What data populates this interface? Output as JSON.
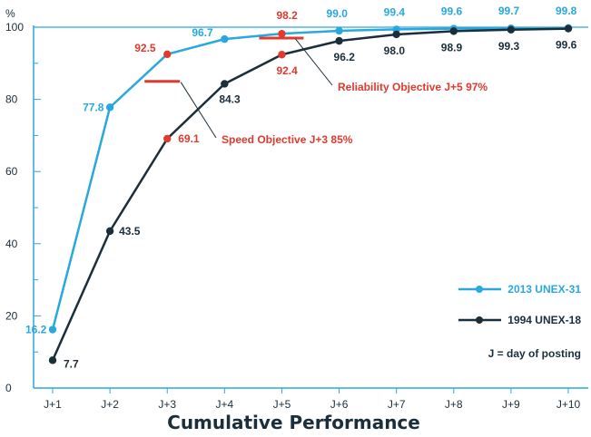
{
  "chart_data": {
    "type": "line",
    "title": "Cumulative Performance",
    "ylabel": "%",
    "categories": [
      "J+1",
      "J+2",
      "J+3",
      "J+4",
      "J+5",
      "J+6",
      "J+7",
      "J+8",
      "J+9",
      "J+10"
    ],
    "ylim": [
      0,
      100
    ],
    "yticks": [
      0,
      20,
      40,
      60,
      80,
      100
    ],
    "ytick_labels": [
      "0",
      "20",
      "40",
      "60",
      "80",
      "100"
    ],
    "grid": false,
    "legend_position": "bottom-right",
    "legend_note": "J = day of posting",
    "series": [
      {
        "name": "2013 UNEX-31",
        "color": "#29a8e0",
        "values": [
          16.2,
          77.8,
          92.5,
          96.7,
          98.2,
          99.0,
          99.4,
          99.6,
          99.7,
          99.8
        ],
        "labels": [
          "16.2",
          "77.8",
          "92.5",
          "96.7",
          "98.2",
          "99.0",
          "99.4",
          "99.6",
          "99.7",
          "99.8"
        ]
      },
      {
        "name": "1994 UNEX-18",
        "color": "#1a2e3b",
        "values": [
          7.7,
          43.5,
          69.1,
          84.3,
          92.4,
          96.2,
          98.0,
          98.9,
          99.3,
          99.6
        ],
        "labels": [
          "7.7",
          "43.5",
          "69.1",
          "84.3",
          "92.4",
          "96.2",
          "98.0",
          "98.9",
          "99.3",
          "99.6"
        ]
      }
    ],
    "highlight_color": "#e03a2f",
    "annotations": [
      {
        "text": "Speed Objective J+3 85%",
        "category": "J+3",
        "value": 85
      },
      {
        "text": "Reliability Objective J+5 97%",
        "category": "J+5",
        "value": 97
      }
    ]
  }
}
